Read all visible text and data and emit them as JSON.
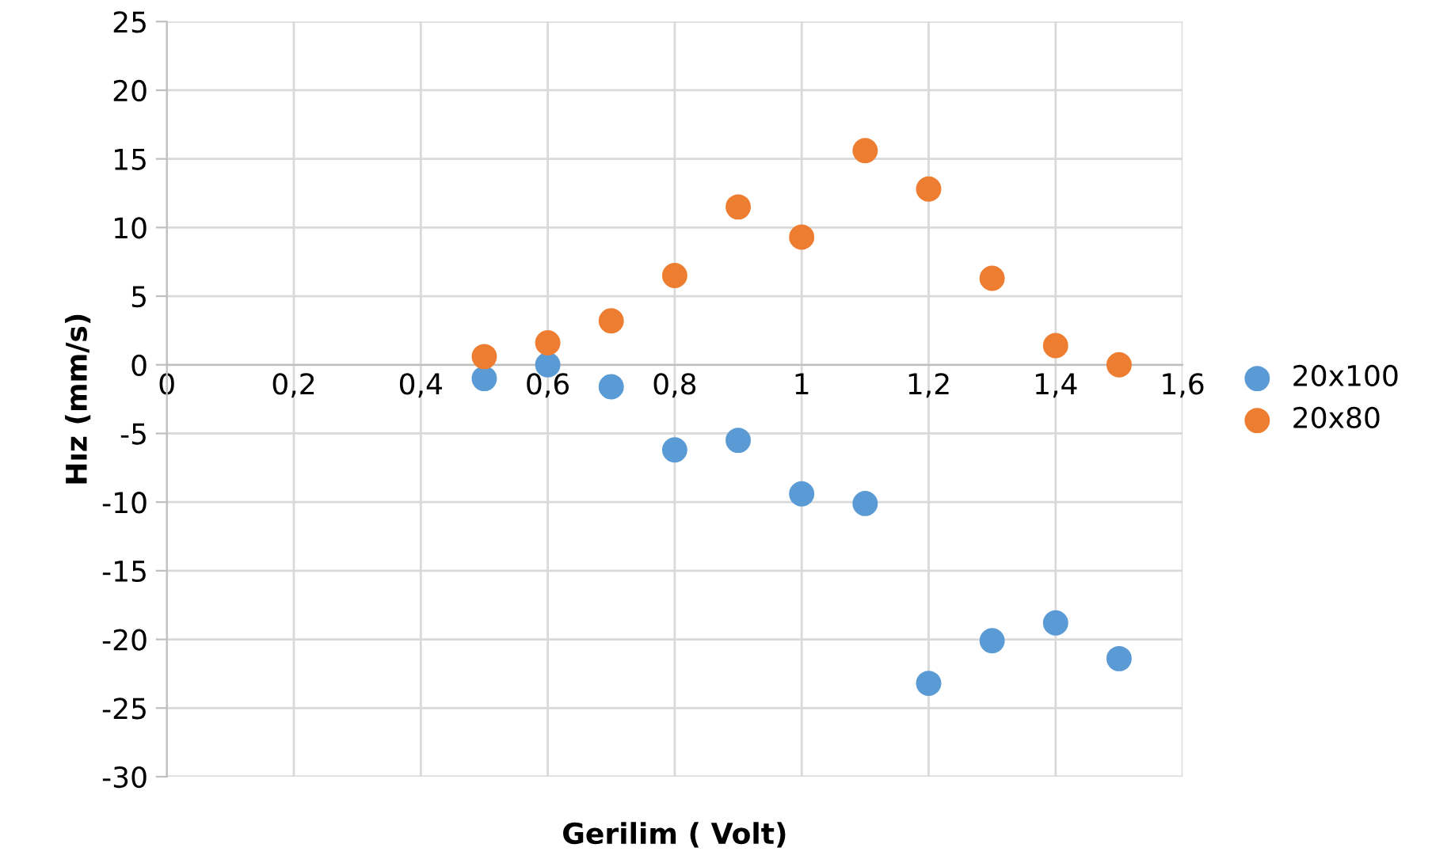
{
  "chart_data": {
    "type": "scatter",
    "xlabel": "Gerilim ( Volt)",
    "ylabel": "Hız (mm/s)",
    "x": [
      0.5,
      0.6,
      0.7,
      0.8,
      0.9,
      1.0,
      1.1,
      1.2,
      1.3,
      1.4,
      1.5
    ],
    "series": [
      {
        "name": "20x100",
        "color": "#5b9bd5",
        "values": [
          -1.0,
          0.0,
          -1.6,
          -6.2,
          -5.5,
          -9.4,
          -10.1,
          -23.2,
          -20.1,
          -18.8,
          -21.4
        ]
      },
      {
        "name": "20x80",
        "color": "#ed7d31",
        "values": [
          0.6,
          1.6,
          3.2,
          6.5,
          11.5,
          9.3,
          15.6,
          12.8,
          6.3,
          1.4,
          0.0
        ]
      }
    ],
    "xlim": [
      0,
      1.6
    ],
    "ylim": [
      -30,
      25
    ],
    "xticks": [
      0,
      {
        "value": 0.2,
        "label": "0,2"
      },
      {
        "value": 0.4,
        "label": "0,4"
      },
      {
        "value": 0.6,
        "label": "0,6"
      },
      {
        "value": 0.8,
        "label": "0,8"
      },
      1,
      {
        "value": 1.2,
        "label": "1,2"
      },
      {
        "value": 1.4,
        "label": "1,4"
      },
      {
        "value": 1.6,
        "label": "1,6"
      }
    ],
    "yticks": [
      -30,
      -25,
      -20,
      -15,
      -10,
      -5,
      0,
      5,
      10,
      15,
      20,
      25
    ],
    "grid": true,
    "legend": "right",
    "marker": "circle"
  }
}
